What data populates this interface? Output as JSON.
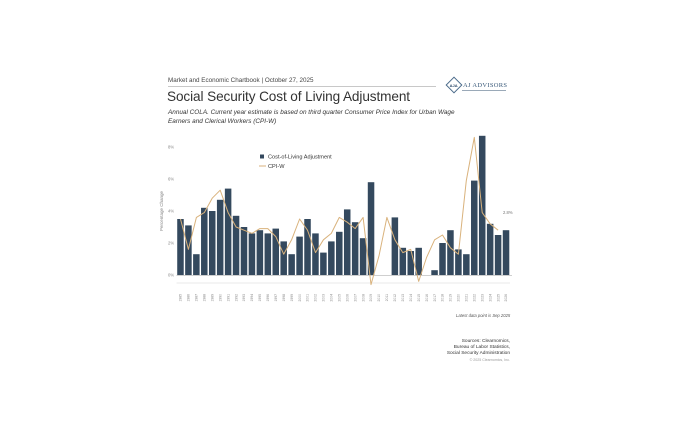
{
  "header": {
    "chartbook": "Market and Economic Chartbook | October 27, 2025",
    "title": "Social Security Cost of Living Adjustment",
    "subtitle": "Annual COLA. Current year estimate is based on third quarter Consumer Price Index for Urban Wage Earners and Clerical Workers (CPI-W)",
    "logo_mark": "AJA",
    "logo_text": "AJ ADVISORS"
  },
  "footer": {
    "note": "Latest data point is Sep 2025",
    "sources": [
      "Sources: Clearnomics,",
      "Bureau of Labor Statistics,",
      "Social Security Administration"
    ],
    "copyright": "© 2025 Clearnomics, Inc."
  },
  "colors": {
    "bar": "#34495e",
    "line": "#d9b27c",
    "axis": "#cccccc"
  },
  "chart_data": {
    "type": "bar",
    "title": "Social Security Cost of Living Adjustment",
    "xlabel": "",
    "ylabel": "Percentage Change",
    "ylim": [
      0,
      8
    ],
    "yticks": [
      0,
      2,
      4,
      6,
      8
    ],
    "ytick_labels": [
      "0%",
      "2%",
      "4%",
      "6%",
      "8%"
    ],
    "legend": {
      "placement": "top-left",
      "entries": [
        "Cost-of-Living Adjustment",
        "CPI-W"
      ]
    },
    "categories": [
      "1985",
      "1986",
      "1987",
      "1988",
      "1989",
      "1990",
      "1991",
      "1992",
      "1993",
      "1994",
      "1995",
      "1996",
      "1997",
      "1998",
      "1999",
      "2000",
      "2001",
      "2002",
      "2003",
      "2004",
      "2005",
      "2006",
      "2007",
      "2008",
      "2009",
      "2010",
      "2011",
      "2012",
      "2013",
      "2014",
      "2015",
      "2016",
      "2017",
      "2018",
      "2019",
      "2020",
      "2021",
      "2022",
      "2023",
      "2024",
      "2025",
      "2026"
    ],
    "series": [
      {
        "name": "Cost-of-Living Adjustment",
        "type": "bar",
        "values": [
          3.5,
          3.1,
          1.3,
          4.2,
          4.0,
          4.7,
          5.4,
          3.7,
          3.0,
          2.6,
          2.8,
          2.6,
          2.9,
          2.1,
          1.3,
          2.4,
          3.5,
          2.6,
          1.4,
          2.1,
          2.7,
          4.1,
          3.3,
          2.3,
          5.8,
          0,
          0,
          3.6,
          1.7,
          1.5,
          1.7,
          0,
          0.3,
          2.0,
          2.8,
          1.6,
          1.3,
          5.9,
          8.7,
          3.2,
          2.5,
          2.8
        ]
      },
      {
        "name": "CPI-W",
        "type": "line",
        "values": [
          3.5,
          1.6,
          3.6,
          3.9,
          4.8,
          5.3,
          3.9,
          3.0,
          2.8,
          2.6,
          2.9,
          2.9,
          2.4,
          1.3,
          2.2,
          3.5,
          2.8,
          1.4,
          2.2,
          2.6,
          3.6,
          3.3,
          2.9,
          3.6,
          -0.6,
          1.2,
          3.6,
          2.2,
          1.4,
          1.6,
          -0.4,
          1.1,
          2.2,
          2.5,
          1.7,
          1.3,
          5.9,
          8.6,
          3.9,
          3.2,
          2.8,
          null
        ]
      }
    ],
    "annotations": [
      {
        "category": "2026",
        "text": "2.8%"
      }
    ]
  }
}
